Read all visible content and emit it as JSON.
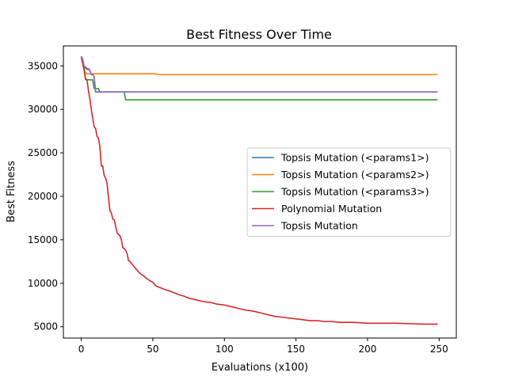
{
  "chart_data": {
    "type": "line",
    "title": "Best Fitness Over Time",
    "xlabel": "Evaluations (x100)",
    "ylabel": "Best Fitness",
    "xlim": [
      -12.5,
      262
    ],
    "ylim": [
      3700,
      37300
    ],
    "xticks": [
      0,
      50,
      100,
      150,
      200,
      250
    ],
    "yticks": [
      5000,
      10000,
      15000,
      20000,
      25000,
      30000,
      35000
    ],
    "grid": false,
    "legend_position": "center-right",
    "series": [
      {
        "name": "Topsis Mutation (<params1>)",
        "color": "#1f77b4",
        "x": [
          0,
          1,
          2,
          3,
          4,
          5,
          6,
          7,
          8,
          9,
          10,
          11,
          249
        ],
        "y": [
          36100,
          35600,
          34800,
          34800,
          34600,
          34600,
          34500,
          34000,
          34000,
          33800,
          32000,
          32000,
          32000
        ]
      },
      {
        "name": "Topsis Mutation (<params2>)",
        "color": "#ff7f0e",
        "x": [
          0,
          1,
          2,
          3,
          4,
          52,
          53,
          249
        ],
        "y": [
          36000,
          35400,
          34500,
          34200,
          34100,
          34100,
          34000,
          34000
        ]
      },
      {
        "name": "Topsis Mutation (<params3>)",
        "color": "#2ca02c",
        "x": [
          0,
          1,
          2,
          3,
          4,
          8,
          9,
          12,
          13,
          30,
          31,
          249
        ],
        "y": [
          36100,
          35400,
          34800,
          33400,
          33400,
          33400,
          32400,
          32400,
          32000,
          32000,
          31100,
          31100
        ]
      },
      {
        "name": "Polynomial Mutation",
        "color": "#d62728",
        "x": [
          0,
          1,
          2,
          3,
          4,
          5,
          6,
          7,
          8,
          9,
          10,
          11,
          12,
          13,
          14,
          15,
          16,
          17,
          18,
          19,
          20,
          21,
          22,
          23,
          24,
          25,
          26,
          27,
          28,
          29,
          30,
          31,
          32,
          33,
          34,
          35,
          36,
          37,
          38,
          40,
          42,
          44,
          46,
          48,
          50,
          52,
          55,
          58,
          62,
          65,
          68,
          72,
          75,
          80,
          85,
          90,
          95,
          100,
          105,
          110,
          115,
          120,
          125,
          130,
          135,
          140,
          145,
          150,
          155,
          160,
          165,
          170,
          175,
          180,
          185,
          190,
          200,
          210,
          220,
          230,
          240,
          249
        ],
        "y": [
          36000,
          35300,
          34500,
          33500,
          33400,
          32200,
          31200,
          30000,
          29000,
          28000,
          27800,
          26900,
          26700,
          25700,
          23500,
          23500,
          22400,
          22100,
          21500,
          19900,
          18400,
          18100,
          17400,
          17300,
          16600,
          15800,
          15600,
          15500,
          15000,
          14100,
          14000,
          13800,
          13400,
          12600,
          12500,
          12300,
          12100,
          11900,
          11700,
          11300,
          11000,
          10800,
          10500,
          10300,
          10100,
          9700,
          9500,
          9300,
          9100,
          8900,
          8700,
          8500,
          8300,
          8100,
          7900,
          7800,
          7600,
          7500,
          7300,
          7100,
          6900,
          6800,
          6600,
          6400,
          6200,
          6100,
          6000,
          5900,
          5800,
          5700,
          5700,
          5600,
          5600,
          5500,
          5500,
          5500,
          5400,
          5400,
          5400,
          5350,
          5300,
          5300
        ]
      },
      {
        "name": "Topsis Mutation",
        "color": "#9467bd",
        "x": [
          0,
          1,
          2,
          3,
          4,
          5,
          6,
          7,
          8,
          9,
          10,
          11,
          249
        ],
        "y": [
          36100,
          35800,
          35000,
          34900,
          34700,
          34700,
          34500,
          34000,
          34000,
          33800,
          32000,
          32000,
          32000
        ]
      }
    ]
  }
}
